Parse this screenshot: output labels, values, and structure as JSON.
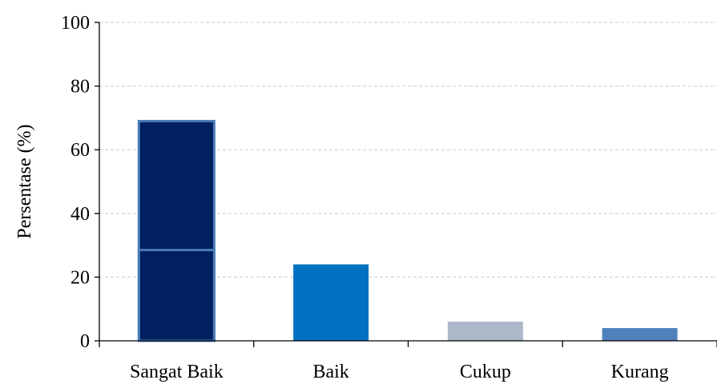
{
  "chart_data": {
    "type": "bar",
    "title": "",
    "xlabel": "",
    "ylabel": "Persentase (%)",
    "categories": [
      "Sangat Baik",
      "Baik",
      "Cukup",
      "Kurang"
    ],
    "values": [
      69,
      24,
      6,
      4
    ],
    "ylim": [
      0,
      100
    ],
    "yticks": [
      0,
      20,
      40,
      60,
      80,
      100
    ],
    "grid": true,
    "colors": [
      "#002060",
      "#0070c0",
      "#adb9ca",
      "#4f81bd"
    ],
    "highlight_box_color": "#4a7ab8",
    "highlight_box_range": [
      0,
      28.5
    ]
  }
}
